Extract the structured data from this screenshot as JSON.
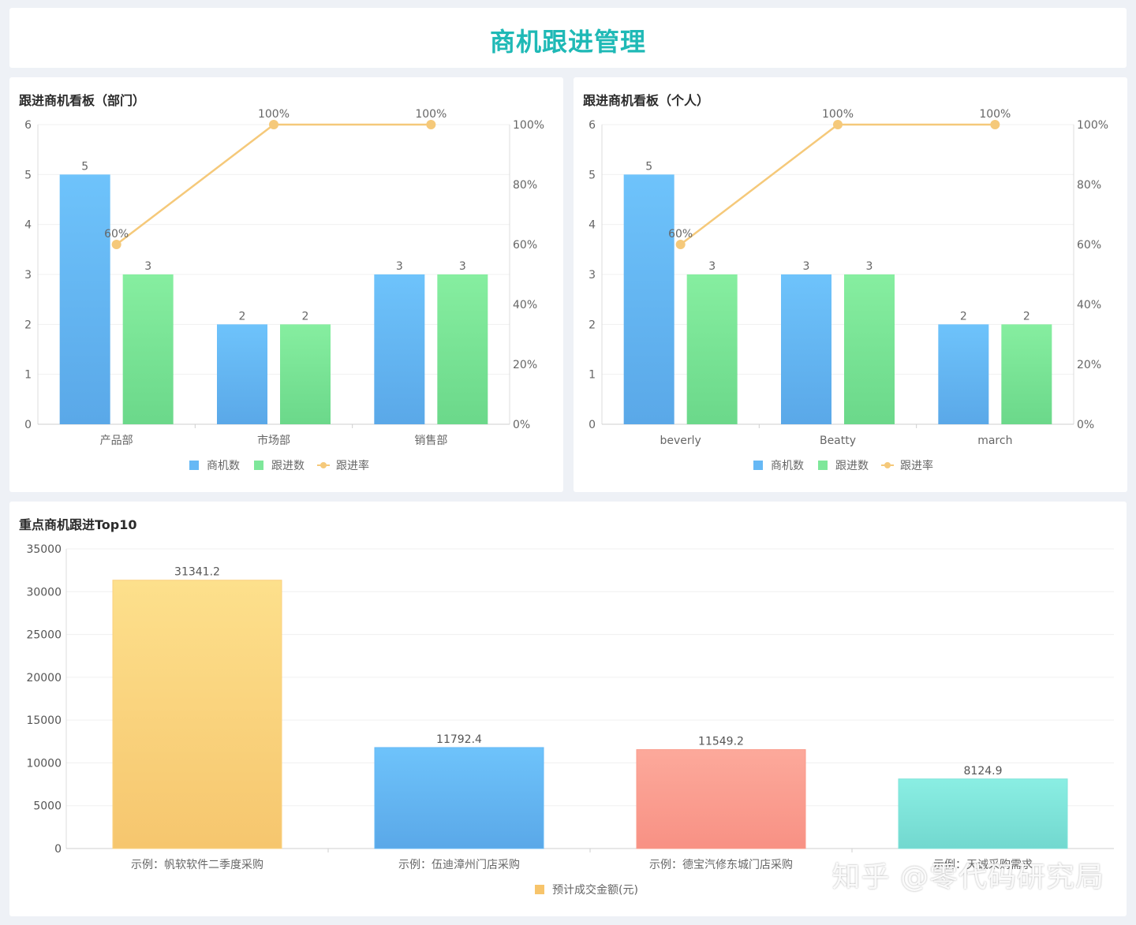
{
  "header": {
    "title": "商机跟进管理"
  },
  "chart_data": [
    {
      "id": "dept",
      "type": "bar",
      "title": "跟进商机看板（部门）",
      "categories": [
        "产品部",
        "市场部",
        "销售部"
      ],
      "series": [
        {
          "name": "商机数",
          "kind": "bar",
          "color": "#66b8f5",
          "values": [
            5,
            2,
            3
          ]
        },
        {
          "name": "跟进数",
          "kind": "bar",
          "color": "#7ee79a",
          "values": [
            3,
            2,
            3
          ]
        },
        {
          "name": "跟进率",
          "kind": "line",
          "color": "#f5c97a",
          "axis": "right",
          "values": [
            60,
            100,
            100
          ]
        }
      ],
      "left_ylim": [
        0,
        6
      ],
      "left_ticks": [
        "0",
        "1",
        "2",
        "3",
        "4",
        "5",
        "6"
      ],
      "right_ylim": [
        0,
        100
      ],
      "right_ticks": [
        "0%",
        "20%",
        "40%",
        "60%",
        "80%",
        "100%"
      ],
      "line_labels": [
        "60%",
        "100%",
        "100%"
      ],
      "legend": "bottom-center"
    },
    {
      "id": "person",
      "type": "bar",
      "title": "跟进商机看板（个人）",
      "categories": [
        "beverly",
        "Beatty",
        "march"
      ],
      "series": [
        {
          "name": "商机数",
          "kind": "bar",
          "color": "#66b8f5",
          "values": [
            5,
            3,
            2
          ]
        },
        {
          "name": "跟进数",
          "kind": "bar",
          "color": "#7ee79a",
          "values": [
            3,
            3,
            2
          ]
        },
        {
          "name": "跟进率",
          "kind": "line",
          "color": "#f5c97a",
          "axis": "right",
          "values": [
            60,
            100,
            100
          ]
        }
      ],
      "left_ylim": [
        0,
        6
      ],
      "left_ticks": [
        "0",
        "1",
        "2",
        "3",
        "4",
        "5",
        "6"
      ],
      "right_ylim": [
        0,
        100
      ],
      "right_ticks": [
        "0%",
        "20%",
        "40%",
        "60%",
        "80%",
        "100%"
      ],
      "line_labels": [
        "60%",
        "100%",
        "100%"
      ],
      "legend": "bottom-center"
    },
    {
      "id": "top10",
      "type": "bar",
      "title": "重点商机跟进Top10",
      "categories": [
        "示例：帆软软件二季度采购",
        "示例：伍迪漳州门店采购",
        "示例：德宝汽修东城门店采购",
        "示例：天诚采购需求"
      ],
      "series": [
        {
          "name": "预计成交金额(元)",
          "kind": "bar",
          "values": [
            31341.2,
            11792.4,
            11549.2,
            8124.9
          ],
          "value_labels": [
            "31341.2",
            "11792.4",
            "11549.2",
            "8124.9"
          ]
        }
      ],
      "bar_colors": [
        "#fbd17f",
        "#66b8f5",
        "#fa9a8a",
        "#7fe3d9"
      ],
      "legend_color": "#f7c46b",
      "ylim": [
        0,
        35000
      ],
      "ticks": [
        "0",
        "5000",
        "10000",
        "15000",
        "20000",
        "25000",
        "30000",
        "35000"
      ],
      "legend": "bottom-center"
    }
  ],
  "watermark": "知乎 @零代码研究局"
}
